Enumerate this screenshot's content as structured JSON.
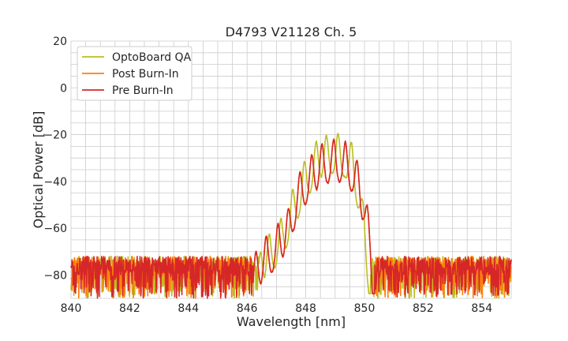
{
  "chart_data": {
    "type": "line",
    "title": "D4793 V21128 Ch. 5",
    "xlabel": "Wavelength [nm]",
    "ylabel": "Optical Power [dB]",
    "xlim": [
      840,
      855
    ],
    "ylim": [
      -90,
      20
    ],
    "xticks": [
      840,
      842,
      844,
      846,
      848,
      850,
      852,
      854
    ],
    "yticks": [
      20,
      0,
      -20,
      -40,
      -60,
      -80
    ],
    "xtick_labels": [
      "840",
      "842",
      "844",
      "846",
      "848",
      "850",
      "852",
      "854"
    ],
    "ytick_labels": [
      "20",
      "0",
      "−20",
      "−40",
      "−60",
      "−80"
    ],
    "grid": true,
    "minor_grid": true,
    "legend_position": "top-left",
    "noise_floor": {
      "upper": -72,
      "lower": -90
    },
    "series": [
      {
        "name": "OptoBoard QA",
        "color": "#bcbd22",
        "envelope": [
          [
            846.4,
            -72
          ],
          [
            846.6,
            -65
          ],
          [
            846.9,
            -60
          ],
          [
            847.2,
            -55
          ],
          [
            847.6,
            -42
          ],
          [
            848.0,
            -30
          ],
          [
            848.4,
            -22
          ],
          [
            848.9,
            -19
          ],
          [
            849.3,
            -20
          ],
          [
            849.6,
            -24
          ],
          [
            849.85,
            -38
          ],
          [
            850.05,
            -60
          ],
          [
            850.2,
            -76
          ]
        ],
        "peaks": [
          846.45,
          846.75,
          847.15,
          847.55,
          847.95,
          848.35,
          848.7,
          849.1,
          849.55,
          849.95
        ]
      },
      {
        "name": "Post Burn-In",
        "color": "#ff7f0e",
        "envelope": [
          [
            846.2,
            -72
          ],
          [
            846.6,
            -64
          ],
          [
            846.95,
            -60
          ],
          [
            847.4,
            -52
          ],
          [
            847.7,
            -38
          ],
          [
            848.1,
            -30
          ],
          [
            848.55,
            -24
          ],
          [
            848.95,
            -22
          ],
          [
            849.35,
            -23
          ],
          [
            849.7,
            -29
          ],
          [
            849.95,
            -40
          ],
          [
            850.2,
            -58
          ],
          [
            850.35,
            -86
          ]
        ],
        "peaks": [
          846.3,
          846.65,
          847.05,
          847.4,
          847.8,
          848.2,
          848.55,
          848.95,
          849.35,
          849.75,
          850.1
        ]
      },
      {
        "name": "Pre Burn-In",
        "color": "#d62728",
        "envelope": [
          [
            846.2,
            -72
          ],
          [
            846.6,
            -64
          ],
          [
            846.95,
            -60
          ],
          [
            847.4,
            -52
          ],
          [
            847.7,
            -38
          ],
          [
            848.1,
            -30
          ],
          [
            848.55,
            -24
          ],
          [
            848.95,
            -22
          ],
          [
            849.35,
            -23
          ],
          [
            849.7,
            -29
          ],
          [
            849.95,
            -40
          ],
          [
            850.2,
            -58
          ],
          [
            850.35,
            -86
          ]
        ],
        "peaks": [
          846.3,
          846.65,
          847.05,
          847.4,
          847.8,
          848.2,
          848.55,
          848.95,
          849.35,
          849.75,
          850.1
        ]
      }
    ]
  }
}
